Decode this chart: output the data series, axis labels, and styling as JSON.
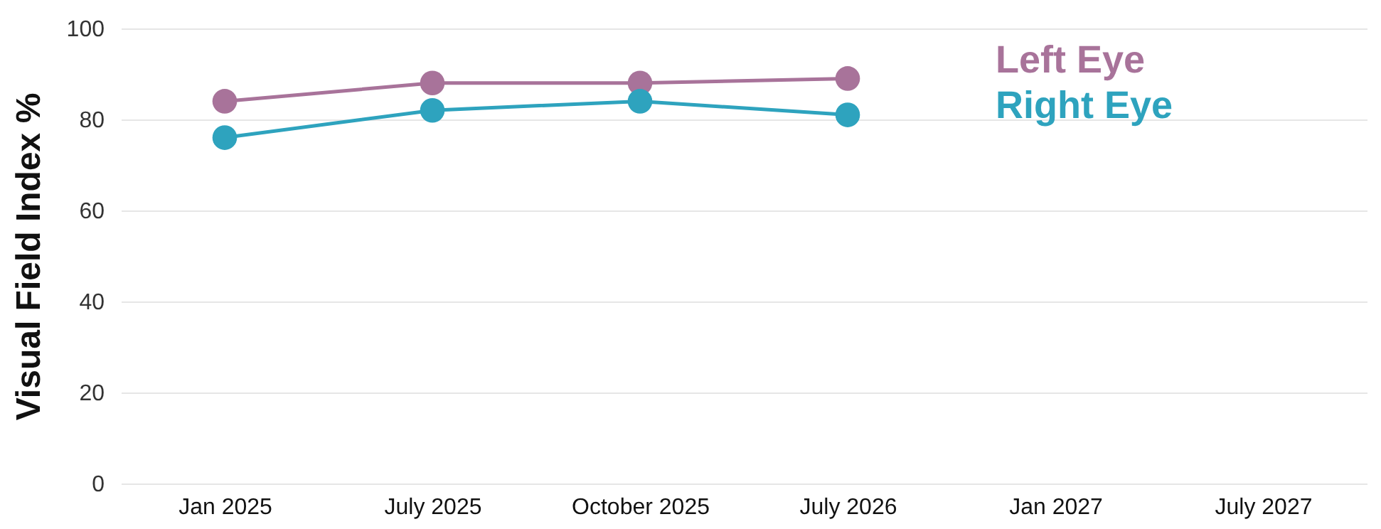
{
  "chart_data": {
    "type": "line",
    "ylabel": "Visual Field Index %",
    "categories": [
      "Jan 2025",
      "July 2025",
      "October 2025",
      "July 2026",
      "Jan 2027",
      "July 2027"
    ],
    "series": [
      {
        "name": "Left Eye",
        "color": "#a8739a",
        "values": [
          84,
          88,
          88,
          89,
          null,
          null
        ]
      },
      {
        "name": "Right Eye",
        "color": "#2ea3be",
        "values": [
          76,
          82,
          84,
          81,
          null,
          null
        ]
      }
    ],
    "ylim": [
      0,
      100
    ],
    "yticks": [
      0,
      20,
      40,
      60,
      80,
      100
    ],
    "grid": "y",
    "legend": "top right",
    "marker": "circle",
    "line_style": "solid"
  }
}
